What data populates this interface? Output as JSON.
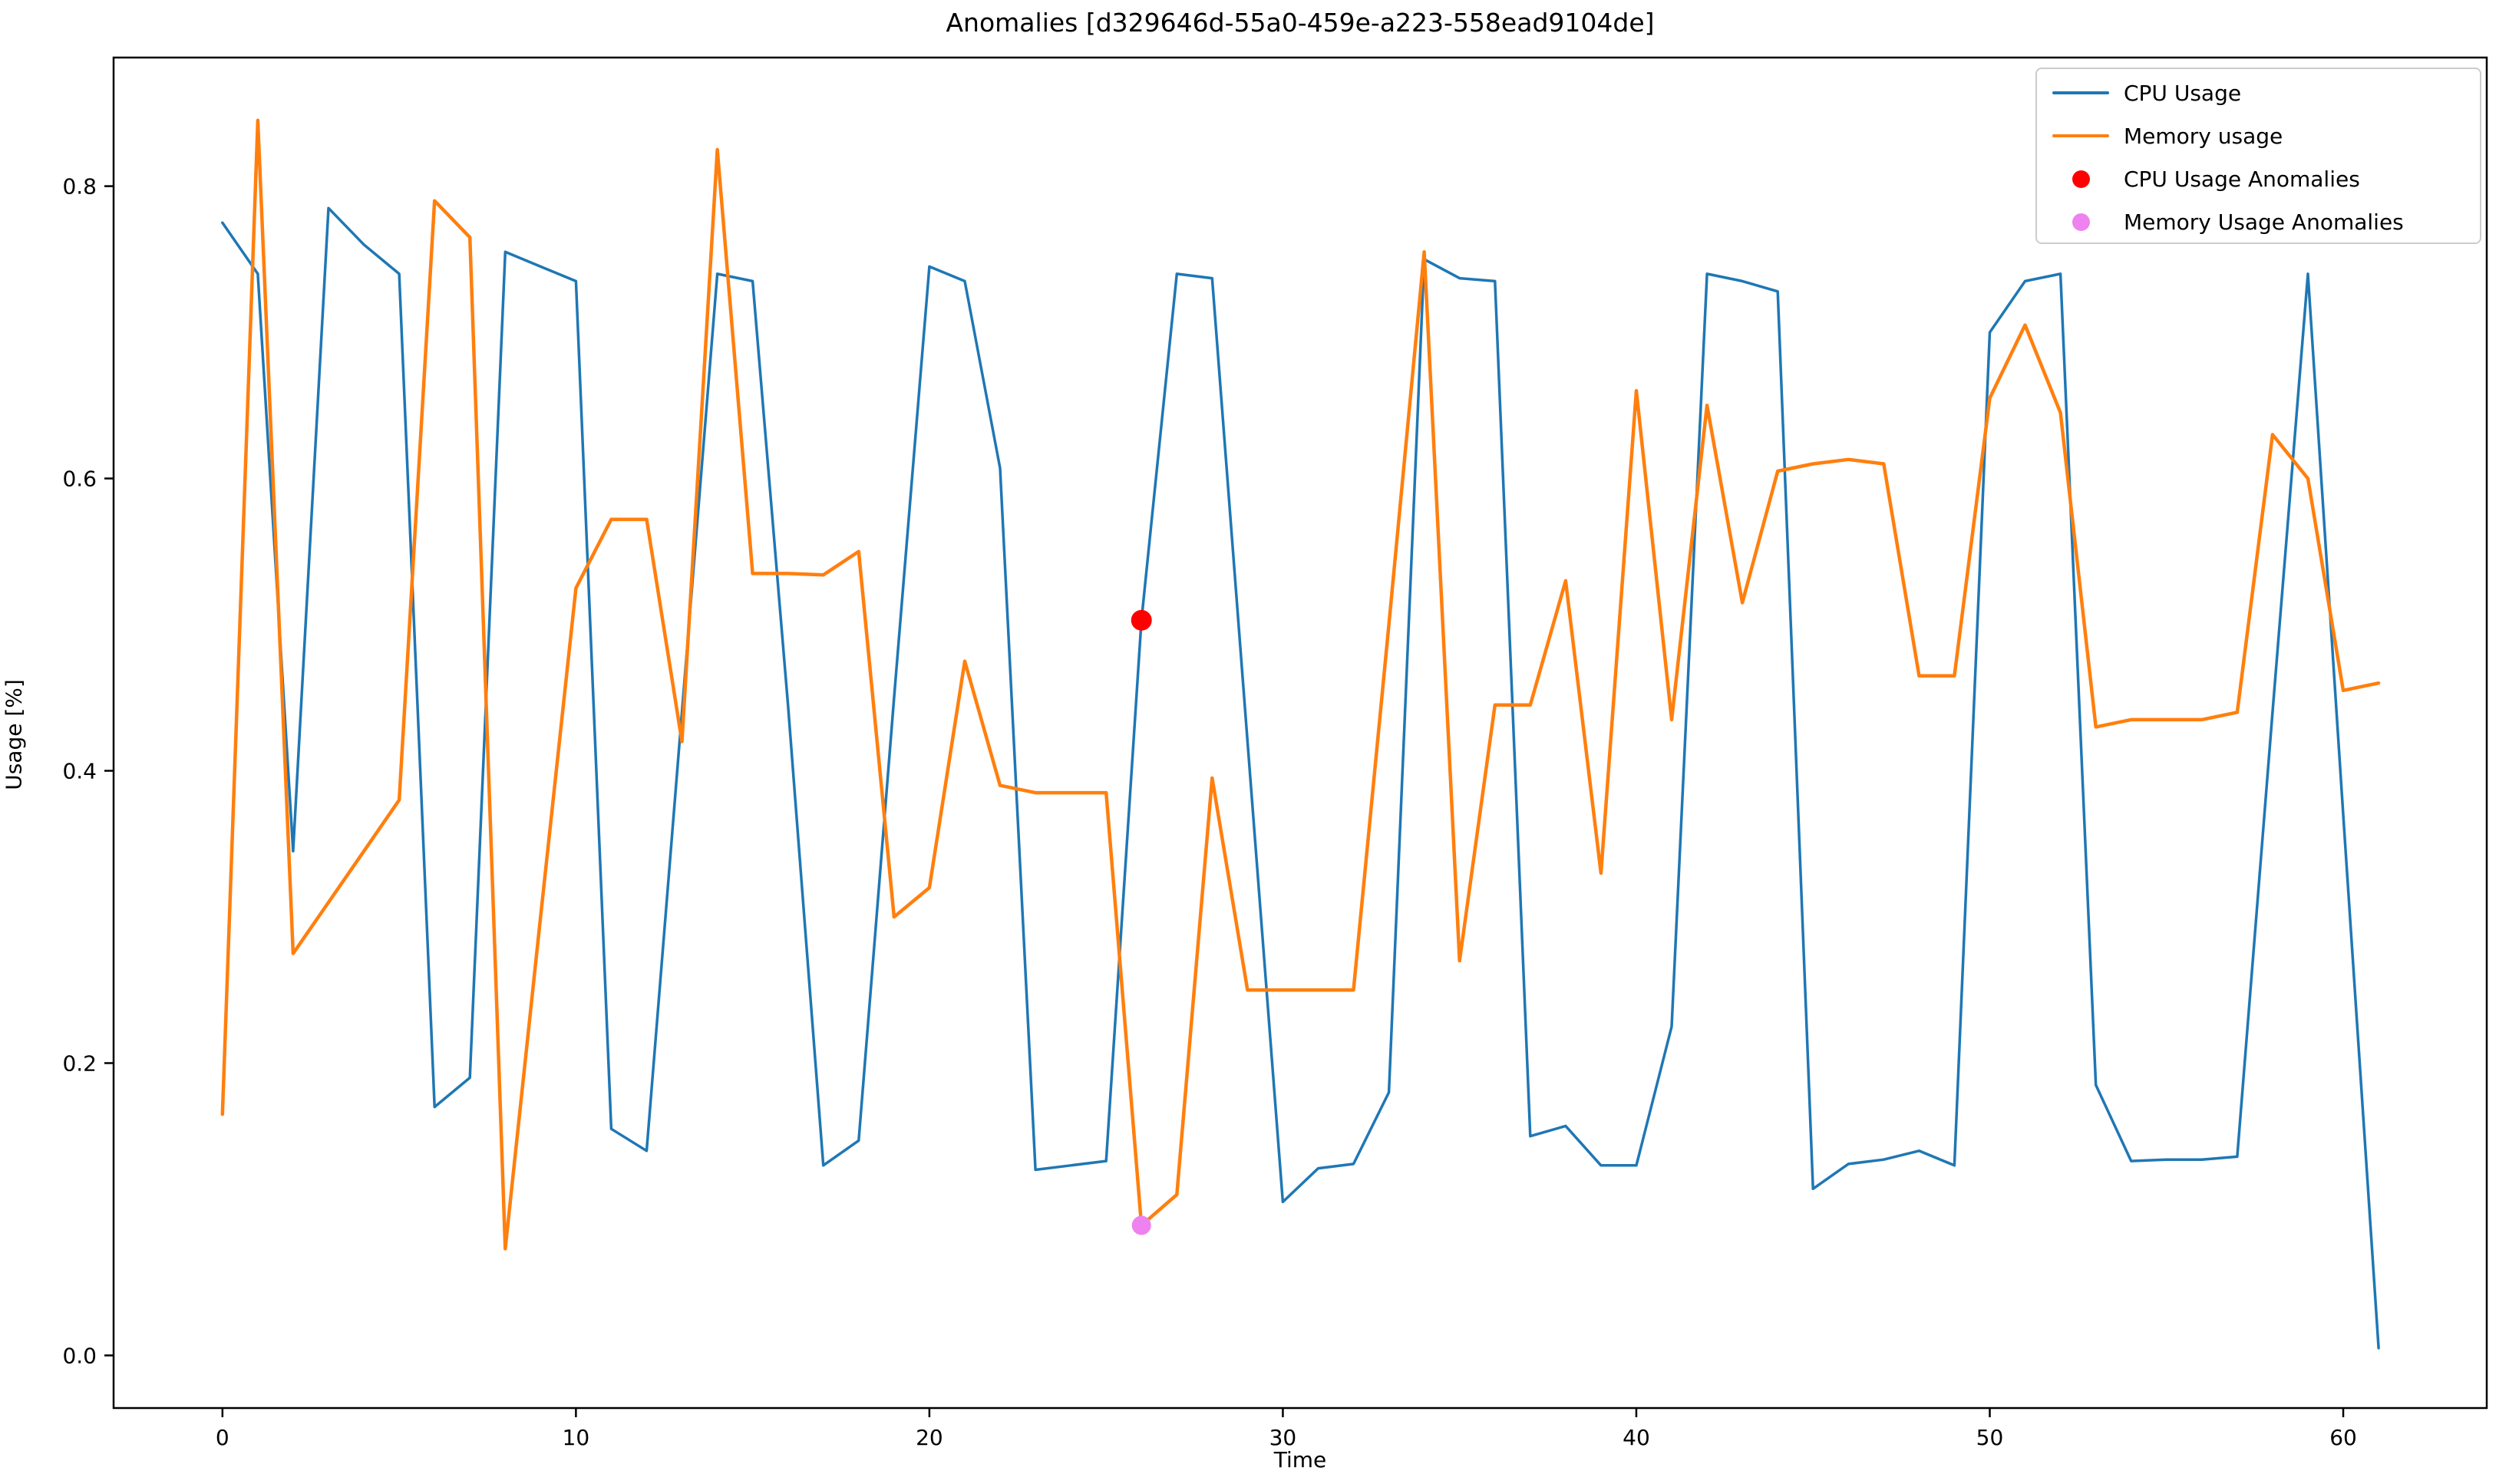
{
  "figure": {
    "title": "Anomalies [d329646d-55a0-459e-a223-558ead9104de]",
    "xlabel": "Time",
    "ylabel": "Usage [%]"
  },
  "legend": {
    "items": [
      {
        "label": "CPU Usage",
        "type": "line",
        "color": "#1f77b4"
      },
      {
        "label": "Memory usage",
        "type": "line",
        "color": "#ff7f0e"
      },
      {
        "label": "CPU Usage Anomalies",
        "type": "dot",
        "color": "#ff0000"
      },
      {
        "label": "Memory Usage Anomalies",
        "type": "dot",
        "color": "#ee82ee"
      }
    ]
  },
  "chart_data": {
    "type": "line",
    "title": "Anomalies [d329646d-55a0-459e-a223-558ead9104de]",
    "xlabel": "Time",
    "ylabel": "Usage [%]",
    "xlim": [
      -3.08,
      64.06
    ],
    "ylim": [
      -0.036,
      0.888
    ],
    "x_ticks": [
      0,
      10,
      20,
      30,
      40,
      50,
      60
    ],
    "y_ticks": [
      0.0,
      0.2,
      0.4,
      0.6,
      0.8
    ],
    "grid": false,
    "legend_position": "upper right",
    "x": [
      0,
      1,
      2,
      3,
      4,
      5,
      6,
      7,
      8,
      9,
      10,
      11,
      12,
      13,
      14,
      15,
      16,
      17,
      18,
      19,
      20,
      21,
      22,
      23,
      24,
      25,
      26,
      27,
      28,
      29,
      30,
      31,
      32,
      33,
      34,
      35,
      36,
      37,
      38,
      39,
      40,
      41,
      42,
      43,
      44,
      45,
      46,
      47,
      48,
      49,
      50,
      51,
      52,
      53,
      54,
      55,
      56,
      57,
      58,
      59,
      60,
      61
    ],
    "series": [
      {
        "name": "CPU Usage",
        "color": "#1f77b4",
        "line_width": 3.5,
        "values": [
          0.775,
          0.74,
          0.345,
          0.785,
          0.76,
          0.74,
          0.17,
          0.19,
          0.755,
          0.745,
          0.735,
          0.155,
          0.14,
          0.44,
          0.74,
          0.735,
          0.445,
          0.13,
          0.147,
          0.45,
          0.745,
          0.735,
          0.607,
          0.127,
          0.13,
          0.133,
          0.503,
          0.74,
          0.737,
          0.42,
          0.105,
          0.128,
          0.131,
          0.18,
          0.75,
          0.737,
          0.735,
          0.15,
          0.157,
          0.13,
          0.13,
          0.225,
          0.74,
          0.735,
          0.728,
          0.114,
          0.131,
          0.134,
          0.14,
          0.13,
          0.7,
          0.735,
          0.74,
          0.185,
          0.133,
          0.134,
          0.134,
          0.136,
          0.44,
          0.74,
          0.37,
          0.005
        ]
      },
      {
        "name": "Memory usage",
        "color": "#ff7f0e",
        "line_width": 4.5,
        "values": [
          0.165,
          0.845,
          0.275,
          0.31,
          0.345,
          0.38,
          0.79,
          0.765,
          0.073,
          0.3,
          0.525,
          0.572,
          0.572,
          0.42,
          0.825,
          0.535,
          0.535,
          0.534,
          0.55,
          0.3,
          0.32,
          0.475,
          0.39,
          0.385,
          0.385,
          0.385,
          0.089,
          0.11,
          0.395,
          0.25,
          0.25,
          0.25,
          0.25,
          0.5,
          0.755,
          0.27,
          0.445,
          0.445,
          0.53,
          0.33,
          0.66,
          0.435,
          0.65,
          0.515,
          0.605,
          0.61,
          0.613,
          0.61,
          0.465,
          0.465,
          0.655,
          0.705,
          0.645,
          0.43,
          0.435,
          0.435,
          0.435,
          0.44,
          0.63,
          0.6,
          0.455,
          0.46
        ]
      }
    ],
    "anomalies": [
      {
        "name": "CPU Usage Anomalies",
        "color": "#ff0000",
        "marker_radius": 13.5,
        "points": [
          {
            "x": 26,
            "y": 0.503
          }
        ]
      },
      {
        "name": "Memory Usage Anomalies",
        "color": "#ee82ee",
        "marker_radius": 12.5,
        "points": [
          {
            "x": 26,
            "y": 0.089
          }
        ]
      }
    ]
  }
}
